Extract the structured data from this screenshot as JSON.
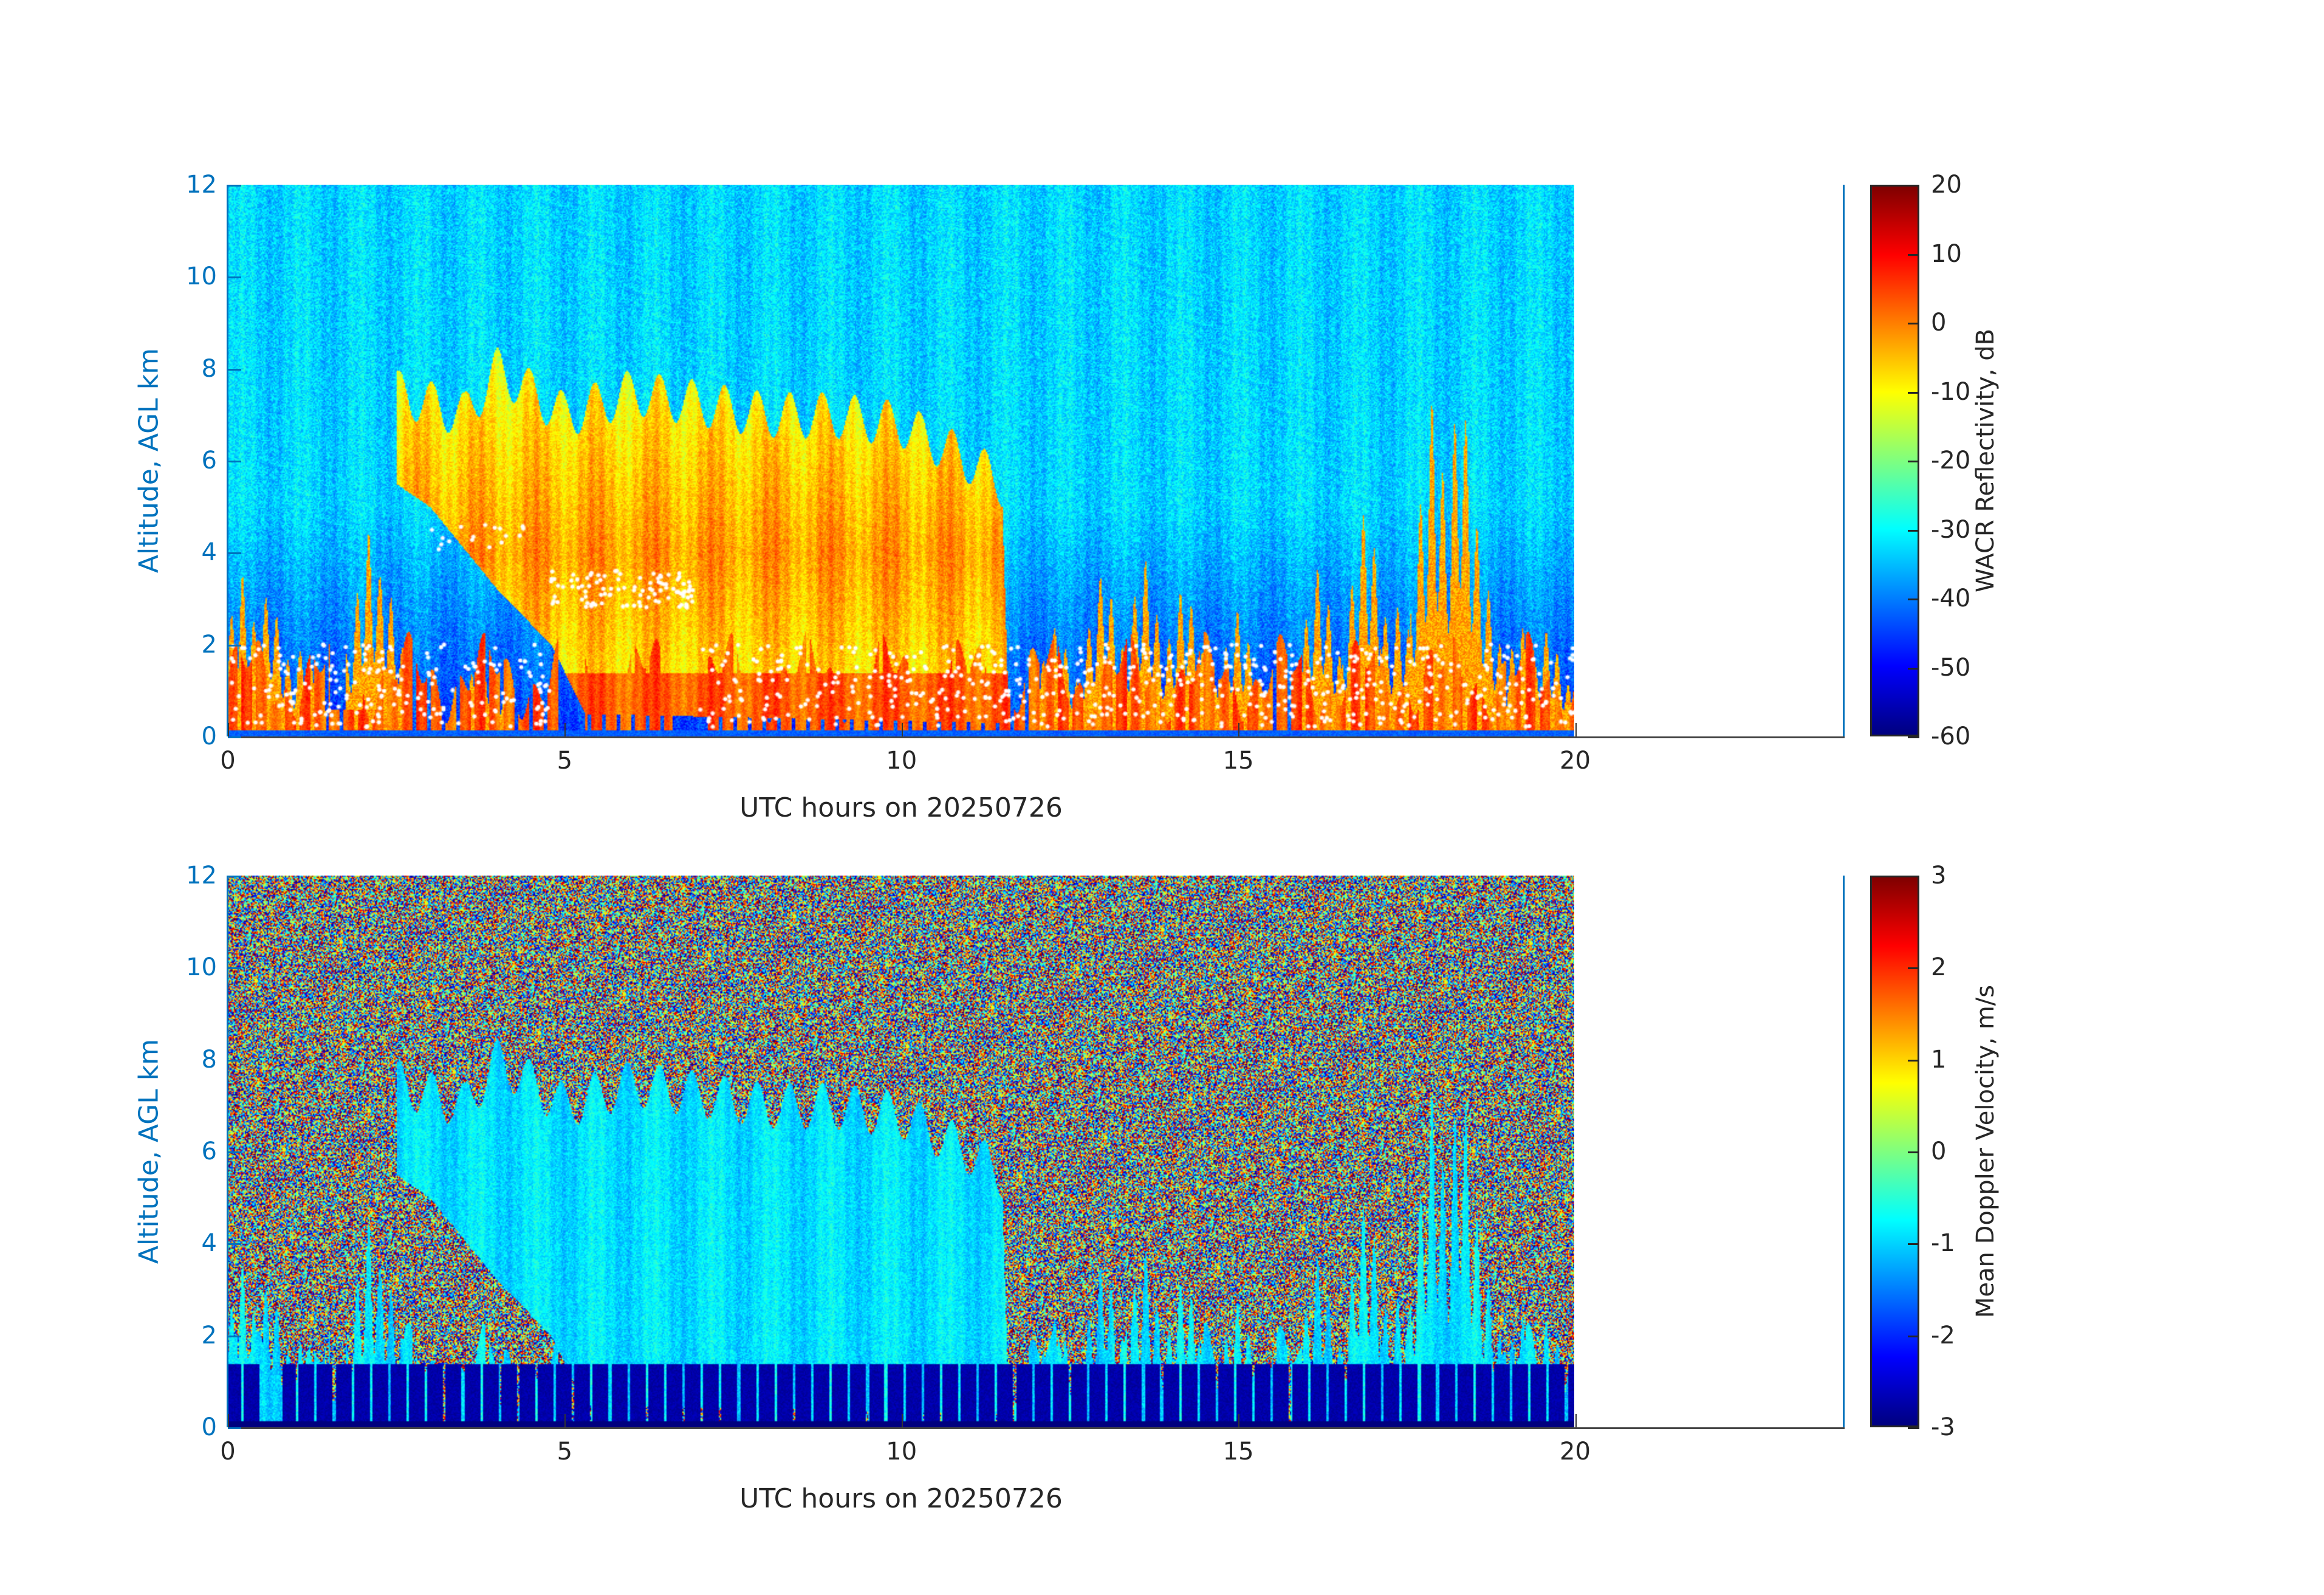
{
  "chart_data": [
    {
      "type": "heatmap",
      "xlabel": "UTC hours on 20250726",
      "ylabel": "Altitude, AGL km",
      "xlim": [
        0,
        24
      ],
      "ylim": [
        0,
        12
      ],
      "xticks": [
        0,
        5,
        10,
        15,
        20
      ],
      "yticks": [
        0,
        2,
        4,
        6,
        8,
        10,
        12
      ],
      "data_extent_hours": [
        0,
        20
      ],
      "colormap": "jet",
      "colorbar": {
        "label": "WACR Reflectivity, dB",
        "range": [
          -60,
          20
        ],
        "ticks": [
          20,
          10,
          0,
          -10,
          -20,
          -30,
          -40,
          -50,
          -60
        ]
      },
      "overlay": "white cloud-base markers",
      "background_value_db": -35,
      "grid": false
    },
    {
      "type": "heatmap",
      "xlabel": "UTC hours on 20250726",
      "ylabel": "Altitude, AGL km",
      "xlim": [
        0,
        24
      ],
      "ylim": [
        0,
        12
      ],
      "xticks": [
        0,
        5,
        10,
        15,
        20
      ],
      "yticks": [
        0,
        2,
        4,
        6,
        8,
        10,
        12
      ],
      "data_extent_hours": [
        0,
        20
      ],
      "colormap": "jet",
      "colorbar": {
        "label": "Mean Doppler Velocity, m/s",
        "range": [
          -3,
          3
        ],
        "ticks": [
          3,
          2,
          1,
          0,
          -1,
          -2,
          -3
        ]
      },
      "grid": false
    }
  ]
}
